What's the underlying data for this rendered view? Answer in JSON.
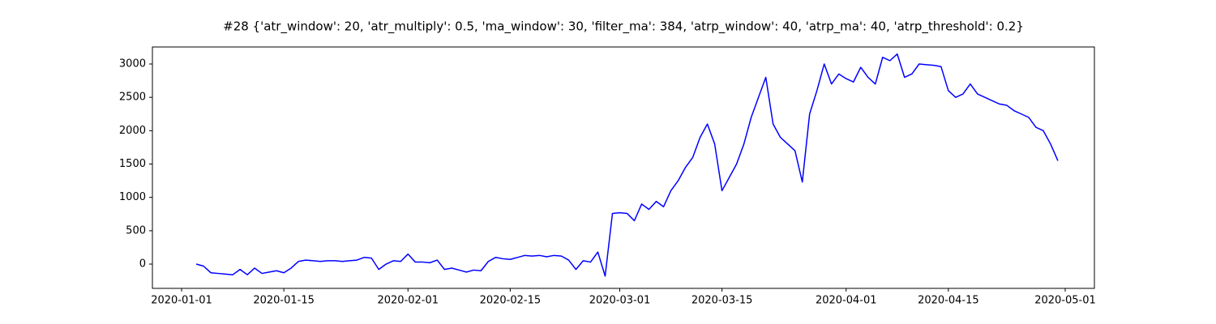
{
  "chart_data": {
    "type": "line",
    "title": "#28 {'atr_window': 20, 'atr_multiply': 0.5, 'ma_window': 30, 'filter_ma': 384, 'atrp_window': 40, 'atrp_ma': 40, 'atrp_threshold': 0.2}",
    "x": [
      "2020-01-03",
      "2020-01-04",
      "2020-01-05",
      "2020-01-06",
      "2020-01-07",
      "2020-01-08",
      "2020-01-09",
      "2020-01-10",
      "2020-01-11",
      "2020-01-12",
      "2020-01-13",
      "2020-01-14",
      "2020-01-15",
      "2020-01-16",
      "2020-01-17",
      "2020-01-18",
      "2020-01-19",
      "2020-01-20",
      "2020-01-21",
      "2020-01-22",
      "2020-01-23",
      "2020-01-24",
      "2020-01-25",
      "2020-01-26",
      "2020-01-27",
      "2020-01-28",
      "2020-01-29",
      "2020-01-30",
      "2020-01-31",
      "2020-02-01",
      "2020-02-02",
      "2020-02-03",
      "2020-02-04",
      "2020-02-05",
      "2020-02-06",
      "2020-02-07",
      "2020-02-08",
      "2020-02-09",
      "2020-02-10",
      "2020-02-11",
      "2020-02-12",
      "2020-02-13",
      "2020-02-14",
      "2020-02-15",
      "2020-02-16",
      "2020-02-17",
      "2020-02-18",
      "2020-02-19",
      "2020-02-20",
      "2020-02-21",
      "2020-02-22",
      "2020-02-23",
      "2020-02-24",
      "2020-02-25",
      "2020-02-26",
      "2020-02-27",
      "2020-02-28",
      "2020-02-29",
      "2020-03-01",
      "2020-03-02",
      "2020-03-03",
      "2020-03-04",
      "2020-03-05",
      "2020-03-06",
      "2020-03-07",
      "2020-03-08",
      "2020-03-09",
      "2020-03-10",
      "2020-03-11",
      "2020-03-12",
      "2020-03-13",
      "2020-03-14",
      "2020-03-15",
      "2020-03-16",
      "2020-03-17",
      "2020-03-18",
      "2020-03-19",
      "2020-03-20",
      "2020-03-21",
      "2020-03-22",
      "2020-03-23",
      "2020-03-24",
      "2020-03-25",
      "2020-03-26",
      "2020-03-27",
      "2020-03-28",
      "2020-03-29",
      "2020-03-30",
      "2020-03-31",
      "2020-04-01",
      "2020-04-02",
      "2020-04-03",
      "2020-04-04",
      "2020-04-05",
      "2020-04-06",
      "2020-04-07",
      "2020-04-08",
      "2020-04-09",
      "2020-04-10",
      "2020-04-11",
      "2020-04-12",
      "2020-04-13",
      "2020-04-14",
      "2020-04-15",
      "2020-04-16",
      "2020-04-17",
      "2020-04-18",
      "2020-04-19",
      "2020-04-20",
      "2020-04-21",
      "2020-04-22",
      "2020-04-23",
      "2020-04-24",
      "2020-04-25",
      "2020-04-26",
      "2020-04-27",
      "2020-04-28",
      "2020-04-29",
      "2020-04-30"
    ],
    "series": [
      {
        "color": "#0000ff",
        "values": [
          0,
          -30,
          -130,
          -140,
          -150,
          -160,
          -80,
          -160,
          -60,
          -140,
          -120,
          -100,
          -130,
          -60,
          40,
          60,
          50,
          40,
          50,
          50,
          40,
          50,
          60,
          100,
          90,
          -80,
          0,
          50,
          40,
          150,
          30,
          30,
          20,
          60,
          -80,
          -60,
          -90,
          -120,
          -90,
          -100,
          40,
          100,
          80,
          70,
          100,
          130,
          120,
          130,
          110,
          130,
          120,
          60,
          -80,
          50,
          30,
          180,
          -180,
          760,
          770,
          760,
          650,
          900,
          820,
          940,
          860,
          1100,
          1250,
          1450,
          1600,
          1900,
          2100,
          1800,
          1100,
          1300,
          1500,
          1800,
          2200,
          2500,
          2800,
          2100,
          1900,
          1800,
          1700,
          1230,
          2250,
          2600,
          3000,
          2700,
          2850,
          2780,
          2730,
          2950,
          2800,
          2700,
          3100,
          3050,
          3150,
          2800,
          2850,
          3000,
          2990,
          2980,
          2960,
          2600,
          2500,
          2550,
          2700,
          2550,
          2500,
          2450,
          2400,
          2380,
          2300,
          2250,
          2200,
          2050,
          2000,
          1800,
          1550
        ]
      }
    ],
    "xlim": [
      "2019-12-28",
      "2020-05-05"
    ],
    "xticks": [
      "2020-01-01",
      "2020-01-15",
      "2020-02-01",
      "2020-02-15",
      "2020-03-01",
      "2020-03-15",
      "2020-04-01",
      "2020-04-15",
      "2020-05-01"
    ],
    "ylim": [
      -364,
      3255
    ],
    "yticks": [
      0,
      500,
      1000,
      1500,
      2000,
      2500,
      3000
    ],
    "grid": false
  }
}
